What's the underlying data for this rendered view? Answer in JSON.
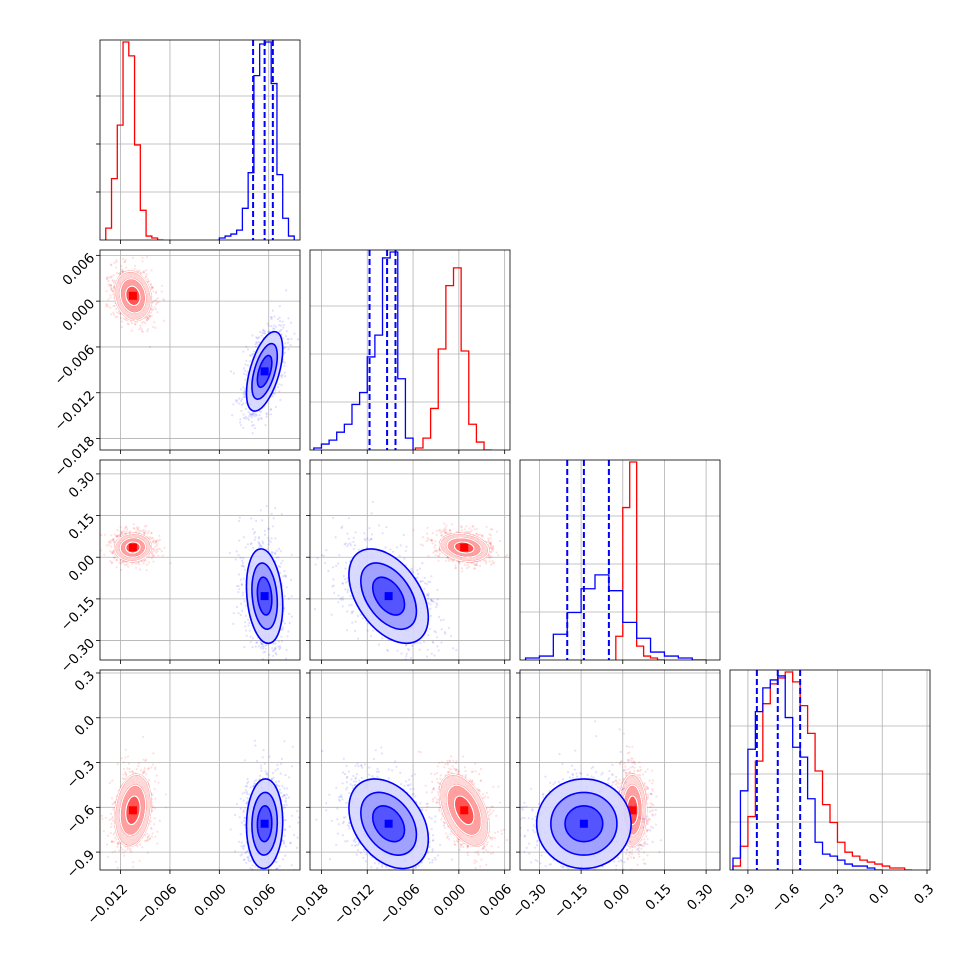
{
  "chart_data": {
    "type": "corner",
    "variables": [
      {
        "range": [
          -0.0145,
          0.0098
        ],
        "ticks": [
          -0.012,
          -0.006,
          0.0,
          0.006
        ],
        "tick_labels": [
          "−0.012",
          "−0.006",
          "0.000",
          "0.006"
        ]
      },
      {
        "range": [
          -0.0195,
          0.0067
        ],
        "ticks": [
          -0.018,
          -0.012,
          -0.006,
          0.0,
          0.006
        ],
        "tick_labels": [
          "−0.018",
          "−0.012",
          "−0.006",
          "0.000",
          "0.006"
        ]
      },
      {
        "range": [
          -0.37,
          0.35
        ],
        "ticks": [
          -0.3,
          -0.15,
          0.0,
          0.15,
          0.3
        ],
        "tick_labels": [
          "−0.30",
          "−0.15",
          "0.00",
          "0.15",
          "0.30"
        ]
      },
      {
        "range": [
          -1.02,
          0.32
        ],
        "ticks": [
          -0.9,
          -0.6,
          -0.3,
          0.0,
          0.3
        ],
        "tick_labels": [
          "−0.9",
          "−0.6",
          "−0.3",
          "0.0",
          "0.3"
        ]
      }
    ],
    "series": [
      {
        "color": "#ff0000",
        "means": [
          -0.0105,
          0.0007,
          0.035,
          -0.62
        ],
        "stds": [
          0.0011,
          0.0016,
          0.025,
          0.12
        ],
        "correlations": [
          [
            0,
            1,
            -0.15
          ],
          [
            0,
            2,
            0.05
          ],
          [
            0,
            3,
            0.2
          ],
          [
            1,
            2,
            -0.2
          ],
          [
            1,
            3,
            -0.45
          ],
          [
            2,
            3,
            0.0
          ]
        ],
        "histograms": [
          {
            "edges": [
              -0.0138,
              -0.0131,
              -0.0124,
              -0.0117,
              -0.011,
              -0.0103,
              -0.0096,
              -0.0089,
              -0.0082,
              -0.0075,
              -0.0068
            ],
            "counts": [
              0.06,
              0.31,
              0.58,
              1.0,
              0.93,
              0.48,
              0.15,
              0.02,
              0.01,
              0.0
            ]
          },
          {
            "edges": [
              -0.0057,
              -0.0047,
              -0.0037,
              -0.0027,
              -0.0017,
              -0.0007,
              0.0003,
              0.0013,
              0.0023,
              0.0033,
              0.0043
            ],
            "counts": [
              0.01,
              0.06,
              0.21,
              0.51,
              0.83,
              0.92,
              0.5,
              0.13,
              0.04,
              0.0
            ]
          },
          {
            "edges": [
              -0.025,
              0.0,
              0.025,
              0.05,
              0.075,
              0.1,
              0.125,
              0.15
            ],
            "counts": [
              0.12,
              0.77,
              1.0,
              0.07,
              0.02,
              0.01,
              0.0
            ]
          },
          {
            "edges": [
              -1.0,
              -0.95,
              -0.9,
              -0.85,
              -0.8,
              -0.75,
              -0.7,
              -0.65,
              -0.6,
              -0.55,
              -0.5,
              -0.45,
              -0.4,
              -0.35,
              -0.3,
              -0.25,
              -0.2,
              -0.15,
              -0.1,
              -0.05,
              0.0,
              0.05,
              0.1,
              0.15,
              0.2
            ],
            "counts": [
              0.02,
              0.12,
              0.27,
              0.55,
              0.84,
              0.94,
              0.97,
              1.0,
              0.95,
              0.83,
              0.69,
              0.5,
              0.33,
              0.24,
              0.14,
              0.09,
              0.07,
              0.05,
              0.04,
              0.03,
              0.02,
              0.01,
              0.01,
              0.0
            ]
          }
        ]
      },
      {
        "color": "#0000ff",
        "means": [
          0.0055,
          -0.0092,
          -0.14,
          -0.71
        ],
        "stds": [
          0.0011,
          0.0026,
          0.085,
          0.15
        ],
        "correlations": [
          [
            0,
            1,
            0.55
          ],
          [
            0,
            2,
            -0.2
          ],
          [
            0,
            3,
            0.05
          ],
          [
            1,
            2,
            -0.45
          ],
          [
            1,
            3,
            -0.35
          ],
          [
            2,
            3,
            0.0
          ]
        ],
        "quantiles": [
          [
            0.0041,
            0.0055,
            0.0065
          ],
          [
            -0.0117,
            -0.0094,
            -0.0083
          ],
          [
            -0.2,
            -0.14,
            -0.05
          ],
          [
            -0.84,
            -0.7,
            -0.55
          ]
        ],
        "histograms": [
          {
            "edges": [
              0.0,
              0.0007,
              0.0014,
              0.0021,
              0.0028,
              0.0035,
              0.0042,
              0.0049,
              0.0056,
              0.0063,
              0.007,
              0.0077,
              0.0084,
              0.0091
            ],
            "counts": [
              0.01,
              0.02,
              0.03,
              0.05,
              0.16,
              0.34,
              0.83,
              0.99,
              1.0,
              0.79,
              0.33,
              0.11,
              0.02
            ]
          },
          {
            "edges": [
              -0.019,
              -0.018,
              -0.017,
              -0.016,
              -0.015,
              -0.014,
              -0.013,
              -0.012,
              -0.011,
              -0.01,
              -0.009,
              -0.008,
              -0.007,
              -0.006
            ],
            "counts": [
              0.01,
              0.03,
              0.05,
              0.09,
              0.13,
              0.23,
              0.29,
              0.47,
              0.58,
              0.97,
              1.0,
              0.36,
              0.06
            ]
          },
          {
            "edges": [
              -0.35,
              -0.3,
              -0.25,
              -0.2,
              -0.15,
              -0.1,
              -0.05,
              0.0,
              0.05,
              0.1,
              0.15,
              0.2,
              0.25,
              0.3
            ],
            "counts": [
              0.01,
              0.02,
              0.13,
              0.24,
              0.36,
              0.43,
              0.35,
              0.19,
              0.11,
              0.04,
              0.02,
              0.01,
              0.0
            ]
          },
          {
            "edges": [
              -1.0,
              -0.95,
              -0.9,
              -0.85,
              -0.8,
              -0.75,
              -0.7,
              -0.65,
              -0.6,
              -0.55,
              -0.5,
              -0.45,
              -0.4,
              -0.35,
              -0.3,
              -0.25,
              -0.2,
              -0.15,
              -0.1,
              -0.05,
              0.0
            ],
            "counts": [
              0.06,
              0.4,
              0.61,
              0.8,
              0.92,
              0.96,
              0.98,
              0.77,
              0.62,
              0.57,
              0.36,
              0.14,
              0.08,
              0.07,
              0.05,
              0.03,
              0.02,
              0.02,
              0.01,
              0.0
            ]
          }
        ]
      }
    ],
    "grid": true
  }
}
